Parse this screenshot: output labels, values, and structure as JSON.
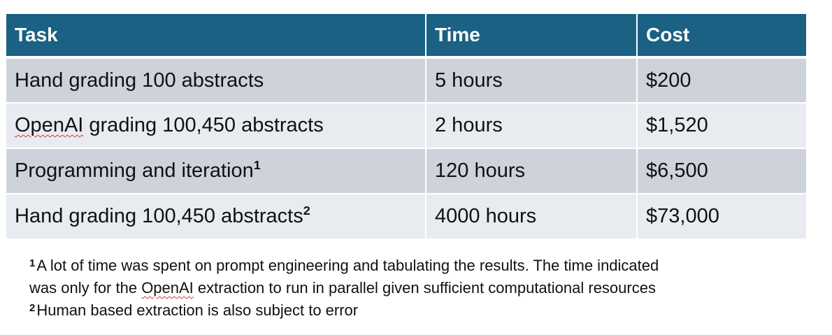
{
  "table": {
    "headers": [
      "Task",
      "Time",
      "Cost"
    ],
    "rows": [
      {
        "task": "Hand grading 100 abstracts",
        "task_prefix": "",
        "task_suffix": "",
        "footnote": "",
        "time": "5 hours",
        "cost": "$200"
      },
      {
        "task": "OpenAI",
        "task_prefix": "",
        "task_suffix": " grading 100,450 abstracts",
        "footnote": "",
        "time": "2 hours",
        "cost": "$1,520"
      },
      {
        "task": "Programming and iteration",
        "task_prefix": "",
        "task_suffix": "",
        "footnote": "1",
        "time": "120 hours",
        "cost": "$6,500"
      },
      {
        "task": "Hand grading 100,450 abstracts",
        "task_prefix": "",
        "task_suffix": "",
        "footnote": "2",
        "time": "4000 hours",
        "cost": "$73,000"
      }
    ]
  },
  "footnotes": {
    "note1_mark": "1",
    "note1_line1": "A lot of time was spent on prompt engineering and tabulating the results. The time indicated",
    "note1_line2_before": "was only for the ",
    "note1_line2_word": "OpenAI",
    "note1_line2_after": " extraction to run in parallel given sufficient computational resources",
    "note2_mark": "2",
    "note2_text": "Human based extraction is also subject to error"
  },
  "colors": {
    "header_bg": "#1a6183",
    "row_dark": "#ced3db",
    "row_light": "#e8ebef",
    "spellcheck_underline": "#d03a3a"
  }
}
